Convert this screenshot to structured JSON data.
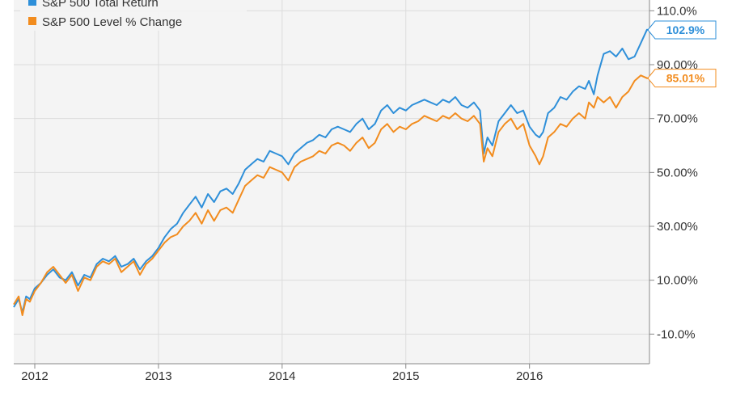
{
  "chart_data": {
    "type": "line",
    "title": "",
    "xlabel": "",
    "ylabel": "",
    "ylim": [
      -21,
      114
    ],
    "xlim": [
      2011.83,
      2016.97
    ],
    "y_ticks": [
      {
        "value": 110,
        "label": "110.0%"
      },
      {
        "value": 90,
        "label": "90.00%"
      },
      {
        "value": 70,
        "label": "70.00%"
      },
      {
        "value": 50,
        "label": "50.00%"
      },
      {
        "value": 30,
        "label": "30.00%"
      },
      {
        "value": 10,
        "label": "10.00%"
      },
      {
        "value": -10,
        "label": "-10.0%"
      }
    ],
    "x_ticks": [
      {
        "value": 2012,
        "label": "2012"
      },
      {
        "value": 2013,
        "label": "2013"
      },
      {
        "value": 2014,
        "label": "2014"
      },
      {
        "value": 2015,
        "label": "2015"
      },
      {
        "value": 2016,
        "label": "2016"
      }
    ],
    "grid": "horizontal and vertical",
    "legend_position": "top-left",
    "series": [
      {
        "name": "S&P 500 Total Return",
        "color": "#2e8fd9",
        "end_label": "102.9%",
        "x": [
          2011.83,
          2011.87,
          2011.9,
          2011.93,
          2011.96,
          2012.0,
          2012.05,
          2012.1,
          2012.15,
          2012.2,
          2012.25,
          2012.3,
          2012.35,
          2012.4,
          2012.45,
          2012.5,
          2012.55,
          2012.6,
          2012.65,
          2012.7,
          2012.75,
          2012.8,
          2012.85,
          2012.9,
          2012.95,
          2013.0,
          2013.05,
          2013.1,
          2013.15,
          2013.2,
          2013.25,
          2013.3,
          2013.35,
          2013.4,
          2013.45,
          2013.5,
          2013.55,
          2013.6,
          2013.65,
          2013.7,
          2013.75,
          2013.8,
          2013.85,
          2013.9,
          2013.95,
          2014.0,
          2014.05,
          2014.1,
          2014.15,
          2014.2,
          2014.25,
          2014.3,
          2014.35,
          2014.4,
          2014.45,
          2014.5,
          2014.55,
          2014.6,
          2014.65,
          2014.7,
          2014.75,
          2014.8,
          2014.85,
          2014.9,
          2014.95,
          2015.0,
          2015.05,
          2015.1,
          2015.15,
          2015.2,
          2015.25,
          2015.3,
          2015.35,
          2015.4,
          2015.45,
          2015.5,
          2015.55,
          2015.6,
          2015.63,
          2015.66,
          2015.7,
          2015.75,
          2015.8,
          2015.85,
          2015.9,
          2015.95,
          2016.0,
          2016.05,
          2016.08,
          2016.11,
          2016.15,
          2016.2,
          2016.25,
          2016.3,
          2016.35,
          2016.4,
          2016.45,
          2016.48,
          2016.52,
          2016.55,
          2016.6,
          2016.65,
          2016.7,
          2016.75,
          2016.8,
          2016.85,
          2016.9,
          2016.95,
          2016.97
        ],
        "values": [
          0,
          3,
          -2,
          4,
          3,
          7,
          9,
          12,
          14,
          11,
          10,
          13,
          8,
          12,
          11,
          16,
          18,
          17,
          19,
          15,
          16,
          18,
          14,
          17,
          19,
          22,
          26,
          29,
          31,
          35,
          38,
          41,
          37,
          42,
          39,
          43,
          44,
          42,
          46,
          51,
          53,
          55,
          54,
          58,
          57,
          56,
          53,
          57,
          59,
          61,
          62,
          64,
          63,
          66,
          67,
          66,
          65,
          68,
          70,
          66,
          68,
          73,
          75,
          72,
          74,
          73,
          75,
          76,
          77,
          76,
          75,
          77,
          76,
          78,
          75,
          74,
          76,
          73,
          57,
          63,
          60,
          69,
          72,
          75,
          72,
          73,
          67,
          64,
          63,
          65,
          72,
          74,
          78,
          77,
          80,
          82,
          81,
          84,
          79,
          86,
          94,
          95,
          93,
          96,
          92,
          93,
          98,
          103,
          102.9
        ]
      },
      {
        "name": "S&P 500 Level % Change",
        "color": "#f28c1e",
        "end_label": "85.01%",
        "x": [
          2011.83,
          2011.87,
          2011.9,
          2011.93,
          2011.96,
          2012.0,
          2012.05,
          2012.1,
          2012.15,
          2012.2,
          2012.25,
          2012.3,
          2012.35,
          2012.4,
          2012.45,
          2012.5,
          2012.55,
          2012.6,
          2012.65,
          2012.7,
          2012.75,
          2012.8,
          2012.85,
          2012.9,
          2012.95,
          2013.0,
          2013.05,
          2013.1,
          2013.15,
          2013.2,
          2013.25,
          2013.3,
          2013.35,
          2013.4,
          2013.45,
          2013.5,
          2013.55,
          2013.6,
          2013.65,
          2013.7,
          2013.75,
          2013.8,
          2013.85,
          2013.9,
          2013.95,
          2014.0,
          2014.05,
          2014.1,
          2014.15,
          2014.2,
          2014.25,
          2014.3,
          2014.35,
          2014.4,
          2014.45,
          2014.5,
          2014.55,
          2014.6,
          2014.65,
          2014.7,
          2014.75,
          2014.8,
          2014.85,
          2014.9,
          2014.95,
          2015.0,
          2015.05,
          2015.1,
          2015.15,
          2015.2,
          2015.25,
          2015.3,
          2015.35,
          2015.4,
          2015.45,
          2015.5,
          2015.55,
          2015.6,
          2015.63,
          2015.66,
          2015.7,
          2015.75,
          2015.8,
          2015.85,
          2015.9,
          2015.95,
          2016.0,
          2016.05,
          2016.08,
          2016.11,
          2016.15,
          2016.2,
          2016.25,
          2016.3,
          2016.35,
          2016.4,
          2016.45,
          2016.48,
          2016.52,
          2016.55,
          2016.6,
          2016.65,
          2016.7,
          2016.75,
          2016.8,
          2016.85,
          2016.9,
          2016.95,
          2016.97
        ],
        "values": [
          1,
          4,
          -3,
          3,
          2,
          6,
          9,
          13,
          15,
          12,
          9,
          12,
          6,
          11,
          10,
          15,
          17,
          16,
          18,
          13,
          15,
          17,
          12,
          16,
          18,
          21,
          24,
          26,
          27,
          30,
          32,
          35,
          31,
          36,
          32,
          36,
          37,
          35,
          40,
          45,
          47,
          49,
          48,
          52,
          51,
          50,
          47,
          52,
          54,
          55,
          56,
          58,
          57,
          60,
          61,
          60,
          58,
          61,
          63,
          59,
          61,
          66,
          68,
          65,
          67,
          66,
          68,
          69,
          71,
          70,
          69,
          71,
          70,
          72,
          70,
          69,
          71,
          68,
          54,
          59,
          56,
          65,
          68,
          70,
          66,
          68,
          60,
          56,
          53,
          56,
          63,
          65,
          68,
          67,
          70,
          72,
          70,
          76,
          74,
          78,
          76,
          78,
          74,
          78,
          80,
          84,
          86,
          85,
          85.01
        ]
      }
    ]
  }
}
